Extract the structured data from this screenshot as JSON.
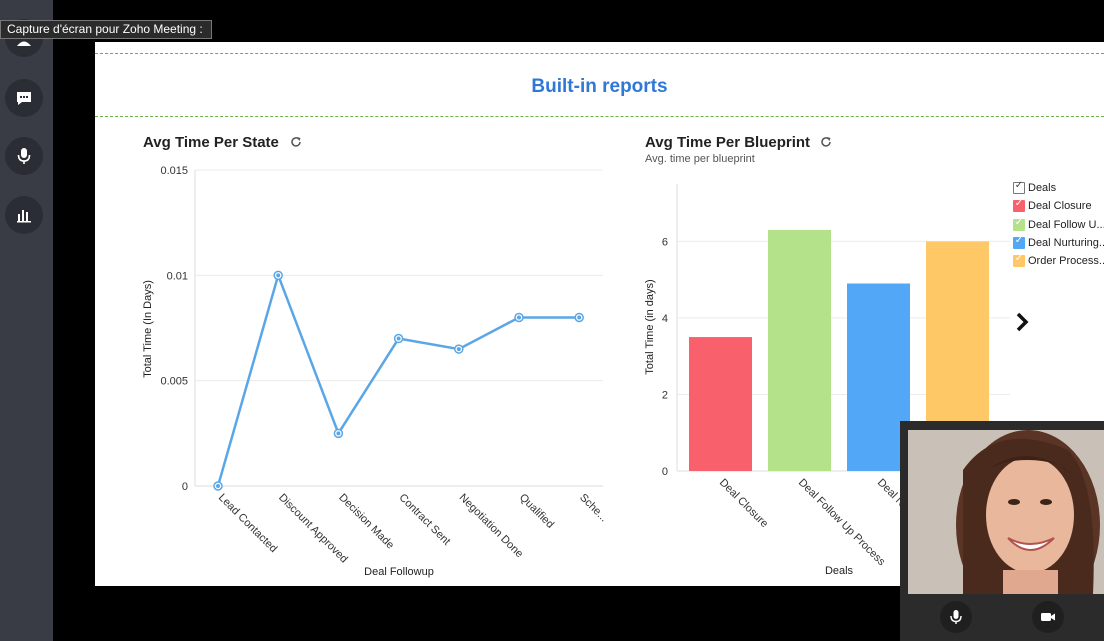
{
  "tooltip": {
    "text": "Capture d'écran pour Zoho Meeting :"
  },
  "sidebar": {
    "items": [
      {
        "name": "participants",
        "icon": "participants-icon"
      },
      {
        "name": "chat",
        "icon": "chat-icon"
      },
      {
        "name": "microphone",
        "icon": "microphone-icon"
      },
      {
        "name": "poll",
        "icon": "poll-icon"
      }
    ]
  },
  "screen": {
    "title": "Built-in reports"
  },
  "chart_data": [
    {
      "type": "line",
      "title": "Avg Time Per State",
      "xlabel": "Deal Followup",
      "ylabel": "Total Time (In Days)",
      "categories": [
        "Lead Contacted",
        "Discount Approved",
        "Decision Made",
        "Contract Sent",
        "Negotiation Done",
        "Qualified",
        "Sche..."
      ],
      "values": [
        0,
        0.01,
        0.0025,
        0.007,
        0.0065,
        0.008,
        0.008
      ],
      "ylim": [
        0,
        0.015
      ],
      "yticks": [
        "0",
        "0.005",
        "0.01",
        "0.015"
      ],
      "color": "#5aa6e6",
      "grid": true
    },
    {
      "type": "bar",
      "title": "Avg Time Per Blueprint",
      "subtitle": "Avg. time per blueprint",
      "xlabel": "Deals",
      "ylabel": "Total Time (in days)",
      "categories": [
        "Deal Closure",
        "Deal Follow Up Process",
        "Deal Nu",
        ""
      ],
      "values": [
        3.5,
        6.3,
        4.9,
        6.0
      ],
      "colors": [
        "#f8616b",
        "#b3e28a",
        "#52a8f7",
        "#fdc865"
      ],
      "ylim": [
        0,
        7.5
      ],
      "yticks": [
        "0",
        "2",
        "4",
        "6"
      ],
      "grid": true,
      "legend": {
        "position": "right",
        "items": [
          {
            "label": "Deals",
            "color": "#ffffff"
          },
          {
            "label": "Deal Closure",
            "color": "#f8616b"
          },
          {
            "label": "Deal Follow U...",
            "color": "#b3e28a"
          },
          {
            "label": "Deal Nurturing...",
            "color": "#52a8f7"
          },
          {
            "label": "Order Process...",
            "color": "#fdc865"
          }
        ]
      }
    }
  ],
  "video": {
    "mic_icon": "microphone-icon",
    "camera_icon": "camera-icon"
  }
}
